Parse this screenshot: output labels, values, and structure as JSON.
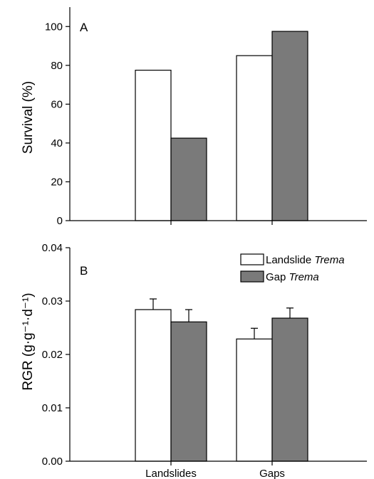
{
  "chart_data": [
    {
      "type": "bar",
      "panel": "A",
      "categories": [
        "Landslides",
        "Gaps"
      ],
      "series": [
        {
          "name": "Landslide Trema",
          "values": [
            77.5,
            85
          ]
        },
        {
          "name": "Gap Trema",
          "values": [
            42.5,
            97.5
          ]
        }
      ],
      "ylabel": "Survival (%)",
      "ylim": [
        0,
        110
      ],
      "yticks": [
        0,
        20,
        40,
        60,
        80,
        100
      ]
    },
    {
      "type": "bar",
      "panel": "B",
      "categories": [
        "Landslides",
        "Gaps"
      ],
      "series": [
        {
          "name": "Landslide Trema",
          "values": [
            0.0284,
            0.0229
          ],
          "errors": [
            0.002,
            0.002
          ]
        },
        {
          "name": "Gap Trema",
          "values": [
            0.0261,
            0.0268
          ],
          "errors": [
            0.0023,
            0.0019
          ]
        }
      ],
      "ylabel": "RGR (g·g⁻¹·d⁻¹)",
      "ylim": [
        0,
        0.04
      ],
      "yticks": [
        "0.00",
        "0.01",
        "0.02",
        "0.03",
        "0.04"
      ],
      "legend": {
        "placement": "top-right"
      }
    }
  ],
  "legend": {
    "items": [
      {
        "prefix": "Landslide",
        "italic": "Trema"
      },
      {
        "prefix": "Gap",
        "italic": "Trema"
      }
    ]
  },
  "colors": {
    "series1": "#ffffff",
    "series2": "#7a7a7a",
    "stroke": "#000000"
  }
}
